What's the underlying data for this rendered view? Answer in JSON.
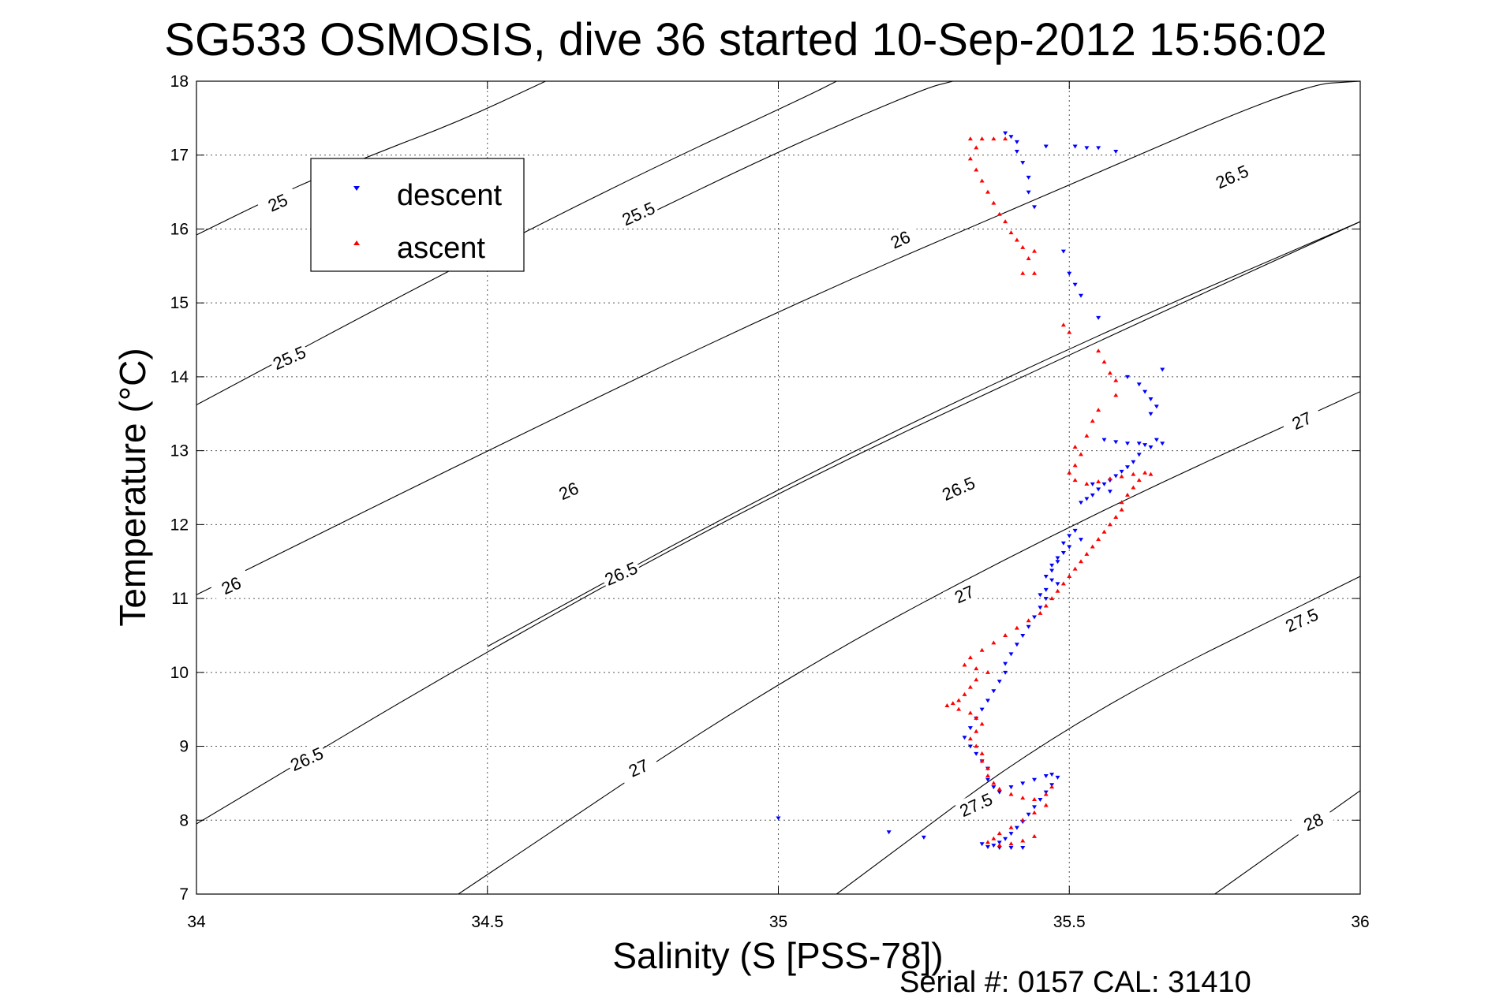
{
  "chart_data": {
    "type": "scatter",
    "title": "SG533 OSMOSIS, dive 36 started 10-Sep-2012 15:56:02",
    "xlabel": "Salinity (S [PSS-78])",
    "ylabel": "Temperature (°C)",
    "xlim": [
      34,
      36
    ],
    "ylim": [
      7,
      18
    ],
    "xticks": [
      "34",
      "34.5",
      "35",
      "35.5",
      "36"
    ],
    "yticks": [
      "7",
      "8",
      "9",
      "10",
      "11",
      "12",
      "13",
      "14",
      "15",
      "16",
      "17",
      "18"
    ],
    "grid": true,
    "legend_position": "top-left",
    "footer": "Serial #: 0157  CAL: 31410",
    "colors": {
      "descent": "#0000ff",
      "ascent": "#ff0000"
    },
    "series": [
      {
        "name": "descent",
        "marker": "triangle-down",
        "points": [
          [
            35.39,
            17.3
          ],
          [
            35.4,
            17.25
          ],
          [
            35.41,
            17.18
          ],
          [
            35.41,
            17.05
          ],
          [
            35.42,
            16.9
          ],
          [
            35.43,
            16.7
          ],
          [
            35.43,
            16.5
          ],
          [
            35.44,
            16.3
          ],
          [
            35.46,
            17.12
          ],
          [
            35.51,
            17.12
          ],
          [
            35.53,
            17.1
          ],
          [
            35.55,
            17.1
          ],
          [
            35.58,
            17.05
          ],
          [
            35.49,
            15.7
          ],
          [
            35.5,
            15.4
          ],
          [
            35.51,
            15.25
          ],
          [
            35.52,
            15.1
          ],
          [
            35.55,
            14.8
          ],
          [
            35.6,
            14.0
          ],
          [
            35.62,
            13.9
          ],
          [
            35.63,
            13.8
          ],
          [
            35.64,
            13.7
          ],
          [
            35.65,
            13.6
          ],
          [
            35.66,
            14.1
          ],
          [
            35.64,
            13.5
          ],
          [
            35.56,
            13.15
          ],
          [
            35.58,
            13.12
          ],
          [
            35.6,
            13.1
          ],
          [
            35.62,
            13.1
          ],
          [
            35.63,
            13.08
          ],
          [
            35.64,
            13.05
          ],
          [
            35.65,
            13.15
          ],
          [
            35.66,
            13.1
          ],
          [
            35.62,
            12.95
          ],
          [
            35.61,
            12.85
          ],
          [
            35.6,
            12.78
          ],
          [
            35.59,
            12.72
          ],
          [
            35.58,
            12.66
          ],
          [
            35.57,
            12.6
          ],
          [
            35.56,
            12.55
          ],
          [
            35.55,
            12.48
          ],
          [
            35.54,
            12.4
          ],
          [
            35.53,
            12.35
          ],
          [
            35.52,
            12.3
          ],
          [
            35.54,
            12.55
          ],
          [
            35.57,
            12.45
          ],
          [
            35.51,
            11.92
          ],
          [
            35.5,
            11.85
          ],
          [
            35.49,
            11.75
          ],
          [
            35.49,
            11.62
          ],
          [
            35.48,
            11.5
          ],
          [
            35.47,
            11.38
          ],
          [
            35.47,
            11.25
          ],
          [
            35.46,
            11.12
          ],
          [
            35.46,
            11.0
          ],
          [
            35.45,
            10.88
          ],
          [
            35.44,
            10.75
          ],
          [
            35.43,
            10.62
          ],
          [
            35.42,
            10.5
          ],
          [
            35.41,
            10.38
          ],
          [
            35.4,
            10.25
          ],
          [
            35.39,
            10.12
          ],
          [
            35.52,
            11.8
          ],
          [
            35.5,
            11.7
          ],
          [
            35.48,
            11.55
          ],
          [
            35.47,
            11.45
          ],
          [
            35.46,
            11.3
          ],
          [
            35.48,
            11.2
          ],
          [
            35.45,
            11.05
          ],
          [
            35.39,
            10.0
          ],
          [
            35.38,
            9.88
          ],
          [
            35.37,
            9.75
          ],
          [
            35.36,
            9.62
          ],
          [
            35.35,
            9.5
          ],
          [
            35.34,
            9.38
          ],
          [
            35.33,
            9.25
          ],
          [
            35.32,
            9.12
          ],
          [
            35.33,
            9.0
          ],
          [
            35.34,
            8.9
          ],
          [
            35.35,
            8.8
          ],
          [
            35.36,
            8.7
          ],
          [
            35.36,
            8.55
          ],
          [
            35.37,
            8.45
          ],
          [
            35.38,
            8.38
          ],
          [
            35.4,
            8.45
          ],
          [
            35.42,
            8.5
          ],
          [
            35.44,
            8.55
          ],
          [
            35.46,
            8.6
          ],
          [
            35.47,
            8.62
          ],
          [
            35.48,
            8.58
          ],
          [
            35.47,
            8.48
          ],
          [
            35.46,
            8.38
          ],
          [
            35.45,
            8.28
          ],
          [
            35.44,
            8.18
          ],
          [
            35.43,
            8.08
          ],
          [
            35.42,
            7.98
          ],
          [
            35.41,
            7.9
          ],
          [
            35.4,
            7.82
          ],
          [
            35.39,
            7.75
          ],
          [
            35.38,
            7.7
          ],
          [
            35.37,
            7.66
          ],
          [
            35.36,
            7.64
          ],
          [
            35.38,
            7.63
          ],
          [
            35.4,
            7.63
          ],
          [
            35.42,
            7.63
          ],
          [
            35.35,
            7.68
          ],
          [
            35.0,
            8.03
          ],
          [
            35.19,
            7.84
          ],
          [
            35.25,
            7.77
          ]
        ]
      },
      {
        "name": "ascent",
        "marker": "triangle-up",
        "points": [
          [
            35.33,
            17.22
          ],
          [
            35.35,
            17.22
          ],
          [
            35.37,
            17.22
          ],
          [
            35.39,
            17.22
          ],
          [
            35.34,
            17.1
          ],
          [
            35.33,
            16.95
          ],
          [
            35.34,
            16.8
          ],
          [
            35.35,
            16.65
          ],
          [
            35.36,
            16.5
          ],
          [
            35.37,
            16.35
          ],
          [
            35.38,
            16.2
          ],
          [
            35.39,
            16.1
          ],
          [
            35.4,
            15.95
          ],
          [
            35.41,
            15.85
          ],
          [
            35.42,
            15.75
          ],
          [
            35.43,
            15.6
          ],
          [
            35.44,
            15.7
          ],
          [
            35.42,
            15.4
          ],
          [
            35.44,
            15.4
          ],
          [
            35.49,
            14.7
          ],
          [
            35.5,
            14.6
          ],
          [
            35.55,
            14.35
          ],
          [
            35.56,
            14.2
          ],
          [
            35.57,
            14.05
          ],
          [
            35.58,
            13.95
          ],
          [
            35.58,
            13.75
          ],
          [
            35.55,
            13.55
          ],
          [
            35.54,
            13.4
          ],
          [
            35.53,
            13.2
          ],
          [
            35.51,
            13.05
          ],
          [
            35.52,
            12.95
          ],
          [
            35.51,
            12.8
          ],
          [
            35.5,
            12.7
          ],
          [
            35.51,
            12.6
          ],
          [
            35.53,
            12.55
          ],
          [
            35.55,
            12.58
          ],
          [
            35.57,
            12.62
          ],
          [
            35.59,
            12.65
          ],
          [
            35.61,
            12.68
          ],
          [
            35.63,
            12.7
          ],
          [
            35.64,
            12.68
          ],
          [
            35.62,
            12.6
          ],
          [
            35.61,
            12.5
          ],
          [
            35.6,
            12.4
          ],
          [
            35.59,
            12.3
          ],
          [
            35.59,
            12.2
          ],
          [
            35.58,
            12.1
          ],
          [
            35.57,
            12.0
          ],
          [
            35.56,
            11.9
          ],
          [
            35.55,
            11.8
          ],
          [
            35.54,
            11.7
          ],
          [
            35.53,
            11.6
          ],
          [
            35.52,
            11.5
          ],
          [
            35.51,
            11.4
          ],
          [
            35.5,
            11.3
          ],
          [
            35.49,
            11.2
          ],
          [
            35.48,
            11.1
          ],
          [
            35.47,
            11.0
          ],
          [
            35.46,
            10.9
          ],
          [
            35.45,
            10.8
          ],
          [
            35.43,
            10.7
          ],
          [
            35.41,
            10.6
          ],
          [
            35.39,
            10.5
          ],
          [
            35.37,
            10.4
          ],
          [
            35.35,
            10.3
          ],
          [
            35.33,
            10.2
          ],
          [
            35.32,
            10.1
          ],
          [
            35.34,
            10.05
          ],
          [
            35.36,
            10.0
          ],
          [
            35.34,
            9.9
          ],
          [
            35.33,
            9.8
          ],
          [
            35.32,
            9.7
          ],
          [
            35.31,
            9.62
          ],
          [
            35.3,
            9.58
          ],
          [
            35.29,
            9.55
          ],
          [
            35.31,
            9.5
          ],
          [
            35.33,
            9.45
          ],
          [
            35.34,
            9.38
          ],
          [
            35.35,
            9.3
          ],
          [
            35.34,
            9.2
          ],
          [
            35.33,
            9.1
          ],
          [
            35.34,
            9.0
          ],
          [
            35.35,
            8.9
          ],
          [
            35.35,
            8.8
          ],
          [
            35.36,
            8.7
          ],
          [
            35.36,
            8.6
          ],
          [
            35.37,
            8.5
          ],
          [
            35.38,
            8.42
          ],
          [
            35.4,
            8.35
          ],
          [
            35.42,
            8.3
          ],
          [
            35.44,
            8.28
          ],
          [
            35.46,
            8.35
          ],
          [
            35.47,
            8.45
          ],
          [
            35.46,
            8.2
          ],
          [
            35.44,
            8.1
          ],
          [
            35.42,
            8.0
          ],
          [
            35.4,
            7.9
          ],
          [
            35.38,
            7.82
          ],
          [
            35.37,
            7.75
          ],
          [
            35.36,
            7.7
          ],
          [
            35.38,
            7.66
          ],
          [
            35.4,
            7.68
          ],
          [
            35.42,
            7.72
          ],
          [
            35.44,
            7.78
          ]
        ]
      }
    ],
    "contours": [
      {
        "level": "25",
        "points": [
          [
            34,
            15.92
          ],
          [
            34.15,
            16.5
          ],
          [
            34.3,
            17.0
          ],
          [
            34.45,
            17.45
          ],
          [
            34.6,
            18.0
          ]
        ]
      },
      {
        "level": "25.5",
        "points": [
          [
            34,
            13.62
          ],
          [
            34.4,
            15.3
          ],
          [
            34.75,
            16.7
          ],
          [
            35.05,
            17.8
          ],
          [
            35.1,
            18.0
          ]
        ]
      },
      {
        "level": "25.5",
        "points": [
          [
            34.75,
            16.1
          ],
          [
            35.0,
            17.05
          ],
          [
            35.25,
            17.9
          ],
          [
            35.3,
            18.0
          ]
        ]
      },
      {
        "level": "26",
        "points": [
          [
            34,
            11.05
          ],
          [
            34.5,
            13.0
          ],
          [
            35.0,
            14.9
          ],
          [
            35.5,
            16.6
          ],
          [
            35.9,
            17.95
          ],
          [
            36,
            18.0
          ]
        ]
      },
      {
        "level": "26.5",
        "points": [
          [
            34.5,
            10.35
          ],
          [
            35.0,
            12.5
          ],
          [
            35.5,
            14.4
          ],
          [
            36,
            16.1
          ]
        ]
      },
      {
        "level": "26.5",
        "points": [
          [
            34,
            7.95
          ],
          [
            34.5,
            10.3
          ],
          [
            35.0,
            12.45
          ],
          [
            35.5,
            14.3
          ],
          [
            36,
            16.1
          ]
        ]
      },
      {
        "level": "27",
        "points": [
          [
            34.45,
            7.0
          ],
          [
            35.0,
            9.9
          ],
          [
            35.5,
            12.0
          ],
          [
            36,
            13.8
          ]
        ]
      },
      {
        "level": "27.5",
        "points": [
          [
            35.1,
            7.0
          ],
          [
            35.5,
            9.35
          ],
          [
            36,
            11.3
          ]
        ]
      },
      {
        "level": "28",
        "points": [
          [
            35.75,
            7.0
          ],
          [
            36,
            8.4
          ]
        ]
      }
    ],
    "contour_labels": [
      {
        "text": "25",
        "x": 34.14,
        "y": 16.35
      },
      {
        "text": "25.5",
        "x": 34.76,
        "y": 16.2
      },
      {
        "text": "26",
        "x": 35.21,
        "y": 15.85
      },
      {
        "text": "25.5",
        "x": 34.16,
        "y": 14.25
      },
      {
        "text": "26",
        "x": 34.64,
        "y": 12.45
      },
      {
        "text": "26.5",
        "x": 35.31,
        "y": 12.48
      },
      {
        "text": "26.5",
        "x": 35.78,
        "y": 16.7
      },
      {
        "text": "26",
        "x": 34.06,
        "y": 11.17
      },
      {
        "text": "26.5",
        "x": 34.73,
        "y": 11.33
      },
      {
        "text": "27",
        "x": 35.32,
        "y": 11.05
      },
      {
        "text": "27",
        "x": 35.9,
        "y": 13.4
      },
      {
        "text": "26.5",
        "x": 34.19,
        "y": 8.82
      },
      {
        "text": "27",
        "x": 34.76,
        "y": 8.7
      },
      {
        "text": "27.5",
        "x": 35.34,
        "y": 8.2
      },
      {
        "text": "27.5",
        "x": 35.9,
        "y": 10.7
      },
      {
        "text": "28",
        "x": 35.92,
        "y": 7.97
      }
    ]
  }
}
